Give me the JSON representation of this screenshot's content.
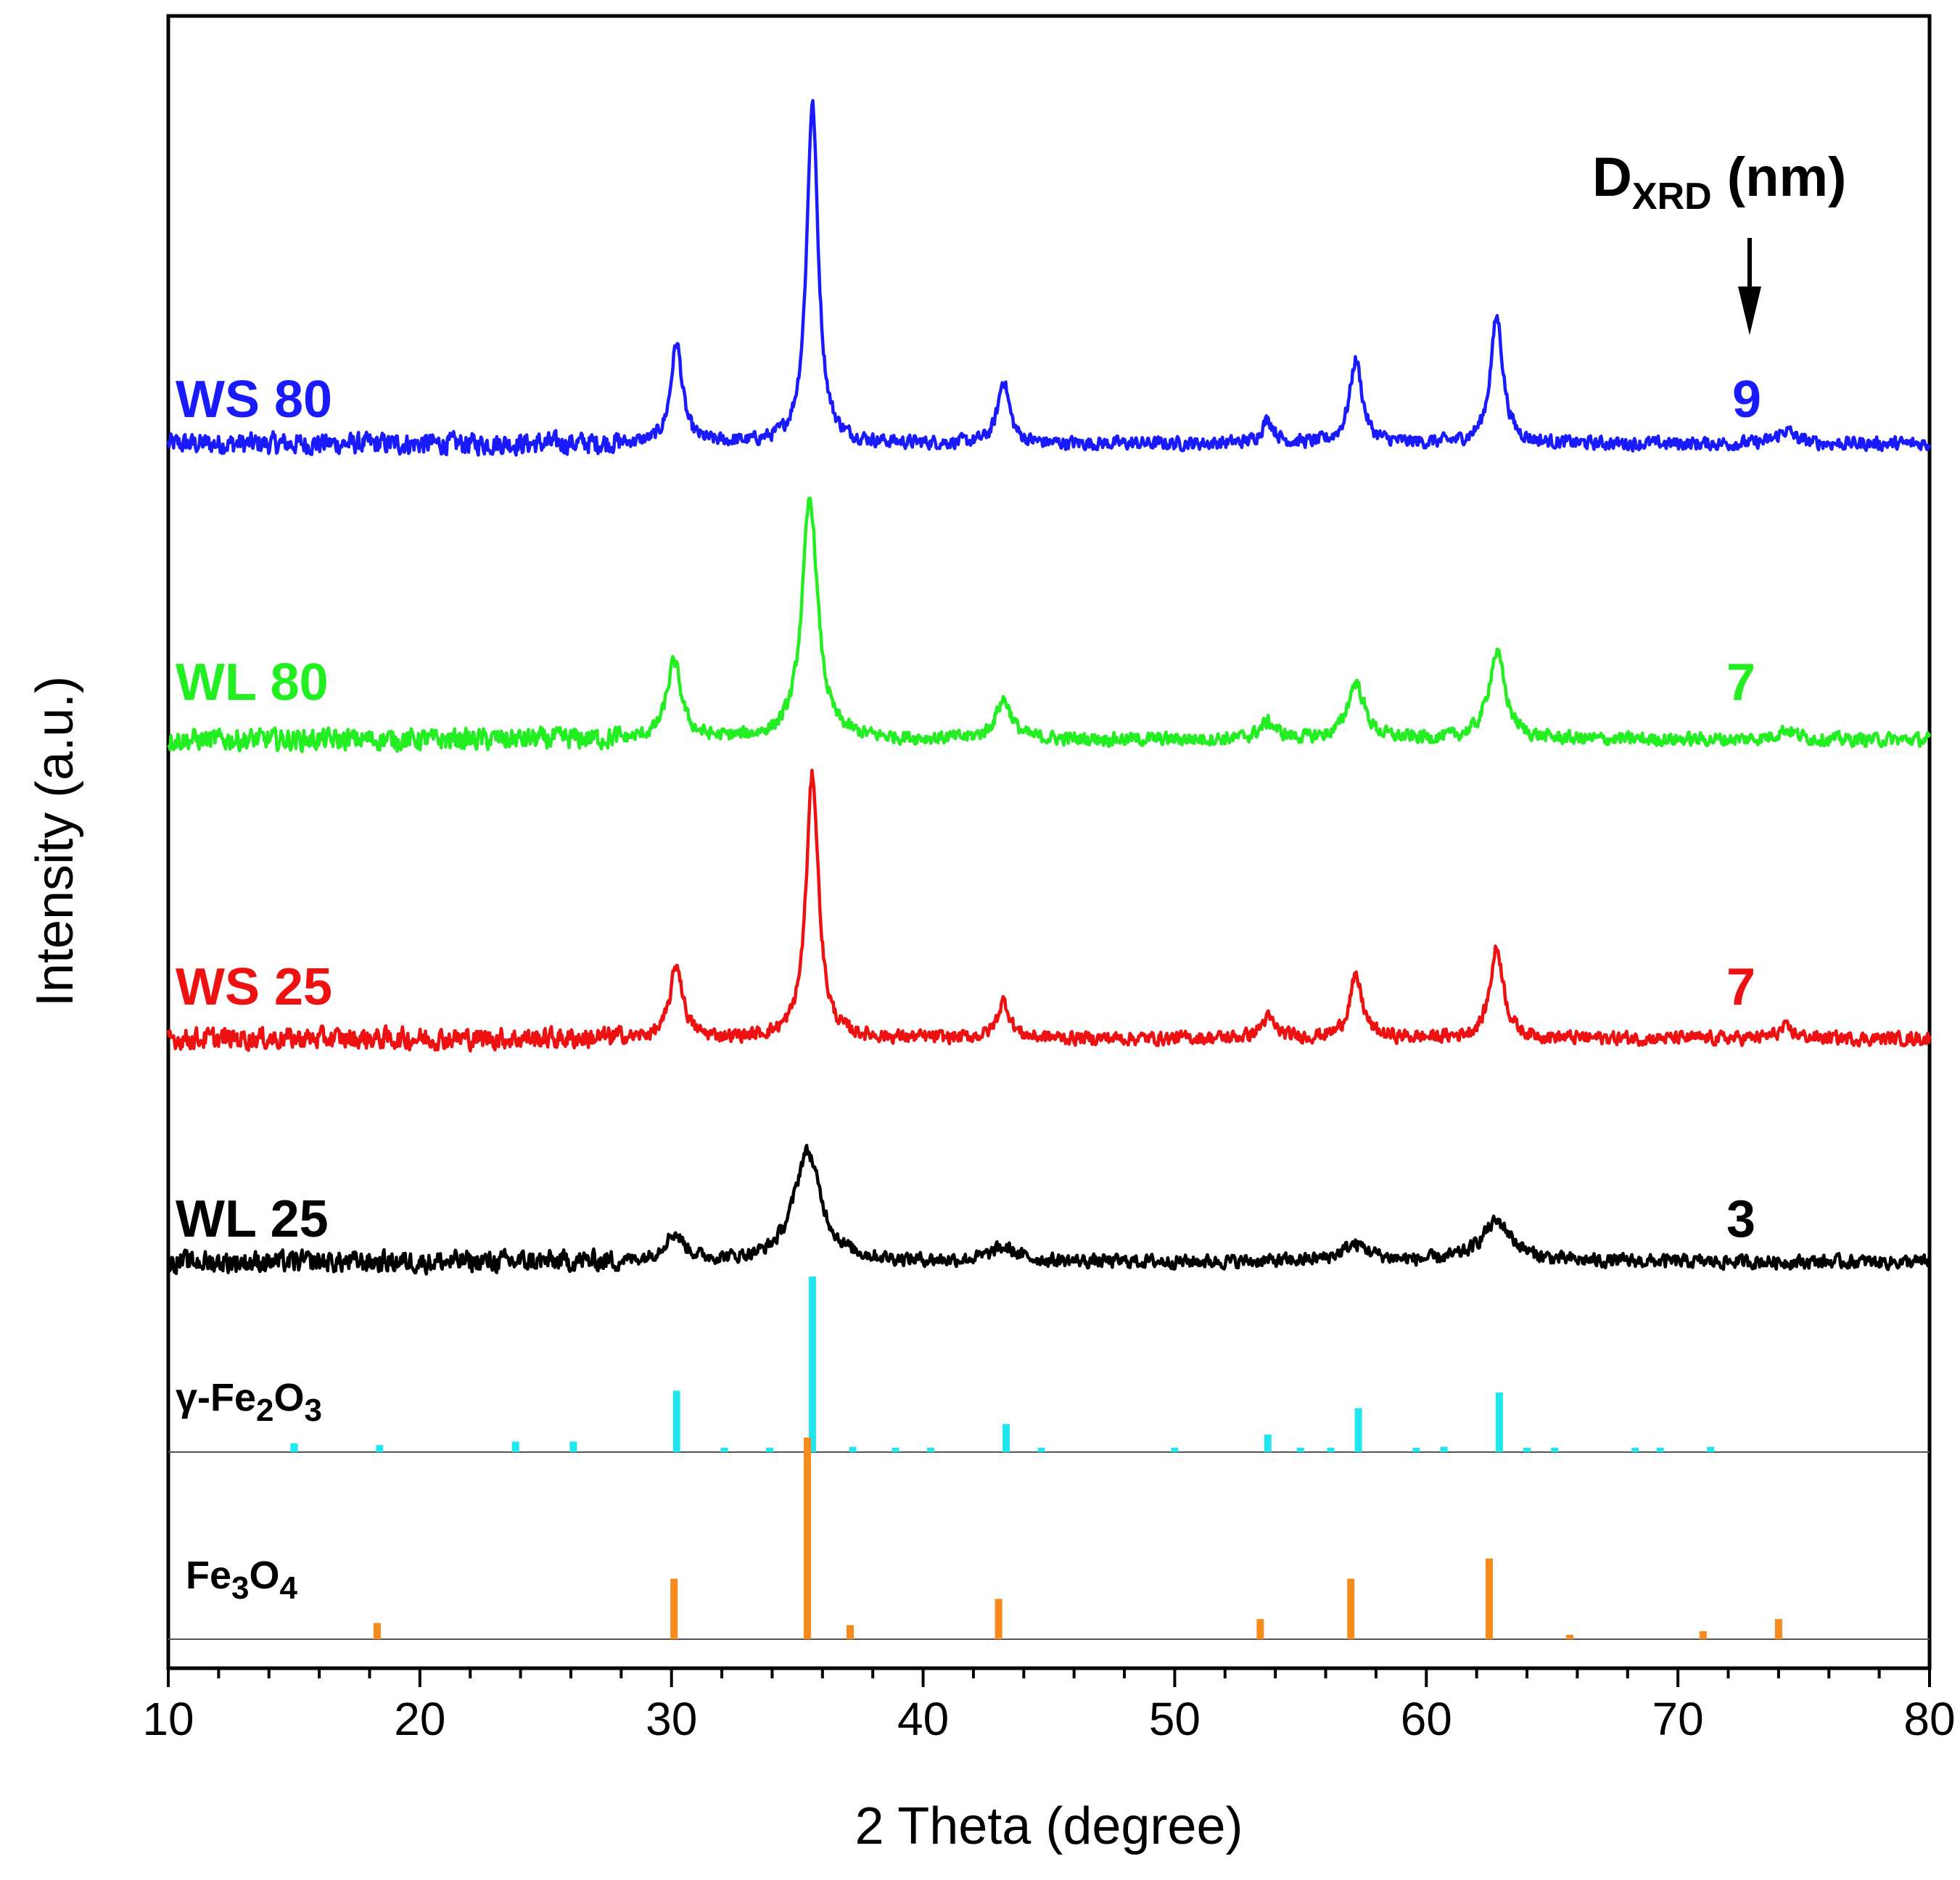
{
  "chart_data": {
    "type": "line",
    "title": "",
    "xlabel": "2 Theta (degree)",
    "ylabel": "Intensity (a.u.)",
    "xlim": [
      10,
      80
    ],
    "x_ticks": [
      "10",
      "20",
      "30",
      "40",
      "50",
      "60",
      "70",
      "80"
    ],
    "grid": false,
    "size_header": {
      "main": "D",
      "sub": "XRD",
      "rest": " (nm)"
    },
    "series": [
      {
        "name": "WS 80",
        "size": "9",
        "color": "#1a1aff",
        "noise": 0.35,
        "peaks": [
          {
            "x": 30.2,
            "h": 3.0,
            "w": 0.55
          },
          {
            "x": 35.6,
            "h": 10.2,
            "w": 0.55
          },
          {
            "x": 43.2,
            "h": 1.9,
            "w": 0.55
          },
          {
            "x": 53.7,
            "h": 0.7,
            "w": 0.6
          },
          {
            "x": 57.2,
            "h": 2.5,
            "w": 0.6
          },
          {
            "x": 62.8,
            "h": 3.8,
            "w": 0.6
          },
          {
            "x": 74.3,
            "h": 0.4,
            "w": 0.8
          }
        ]
      },
      {
        "name": "WL 80",
        "size": "7",
        "color": "#22ee22",
        "noise": 0.35,
        "peaks": [
          {
            "x": 30.1,
            "h": 2.3,
            "w": 0.7
          },
          {
            "x": 35.5,
            "h": 7.2,
            "w": 0.75
          },
          {
            "x": 43.2,
            "h": 1.2,
            "w": 0.75
          },
          {
            "x": 53.7,
            "h": 0.5,
            "w": 0.8
          },
          {
            "x": 57.2,
            "h": 1.7,
            "w": 0.8
          },
          {
            "x": 62.8,
            "h": 2.6,
            "w": 0.8
          },
          {
            "x": 74.3,
            "h": 0.3,
            "w": 0.9
          }
        ]
      },
      {
        "name": "WS 25",
        "size": "7",
        "color": "#ee1111",
        "noise": 0.35,
        "peaks": [
          {
            "x": 30.2,
            "h": 2.2,
            "w": 0.6
          },
          {
            "x": 35.6,
            "h": 7.9,
            "w": 0.6
          },
          {
            "x": 43.2,
            "h": 1.1,
            "w": 0.6
          },
          {
            "x": 53.7,
            "h": 0.6,
            "w": 0.7
          },
          {
            "x": 57.2,
            "h": 1.8,
            "w": 0.65
          },
          {
            "x": 62.8,
            "h": 2.7,
            "w": 0.65
          },
          {
            "x": 74.3,
            "h": 0.3,
            "w": 0.8
          }
        ]
      },
      {
        "name": "WL 25",
        "size": "3",
        "color": "#000000",
        "noise": 0.35,
        "peaks": [
          {
            "x": 30.1,
            "h": 0.8,
            "w": 1.0
          },
          {
            "x": 35.4,
            "h": 3.3,
            "w": 1.3
          },
          {
            "x": 43.2,
            "h": 0.4,
            "w": 1.3
          },
          {
            "x": 57.2,
            "h": 0.5,
            "w": 1.4
          },
          {
            "x": 62.8,
            "h": 1.2,
            "w": 1.5
          }
        ]
      }
    ],
    "references": [
      {
        "name": "γ-Fe2O3",
        "formula": {
          "prefix": "γ-Fe",
          "sub1": "2",
          "mid": "O",
          "sub2": "3"
        },
        "color": "#22e6ee",
        "lines": [
          {
            "x": 15.0,
            "i": 5
          },
          {
            "x": 18.4,
            "i": 4
          },
          {
            "x": 23.8,
            "i": 6
          },
          {
            "x": 26.1,
            "i": 6
          },
          {
            "x": 30.2,
            "i": 35
          },
          {
            "x": 32.1,
            "i": 2
          },
          {
            "x": 33.9,
            "i": 2
          },
          {
            "x": 35.6,
            "i": 100
          },
          {
            "x": 37.2,
            "i": 3
          },
          {
            "x": 38.9,
            "i": 2
          },
          {
            "x": 40.3,
            "i": 2
          },
          {
            "x": 43.3,
            "i": 16
          },
          {
            "x": 44.7,
            "i": 2
          },
          {
            "x": 50.0,
            "i": 2
          },
          {
            "x": 53.7,
            "i": 10
          },
          {
            "x": 55.0,
            "i": 2
          },
          {
            "x": 56.2,
            "i": 2
          },
          {
            "x": 57.3,
            "i": 25
          },
          {
            "x": 59.6,
            "i": 2
          },
          {
            "x": 60.7,
            "i": 3
          },
          {
            "x": 62.9,
            "i": 34
          },
          {
            "x": 64.0,
            "i": 2
          },
          {
            "x": 65.1,
            "i": 2
          },
          {
            "x": 68.3,
            "i": 2
          },
          {
            "x": 69.3,
            "i": 2
          },
          {
            "x": 71.3,
            "i": 3
          }
        ]
      },
      {
        "name": "Fe3O4",
        "formula": {
          "prefix": "Fe",
          "sub1": "3",
          "mid": "O",
          "sub2": "4"
        },
        "color": "#f58a1f",
        "lines": [
          {
            "x": 18.3,
            "i": 8
          },
          {
            "x": 30.1,
            "i": 30
          },
          {
            "x": 35.4,
            "i": 100
          },
          {
            "x": 37.1,
            "i": 7
          },
          {
            "x": 43.0,
            "i": 20
          },
          {
            "x": 53.4,
            "i": 10
          },
          {
            "x": 57.0,
            "i": 30
          },
          {
            "x": 62.5,
            "i": 40
          },
          {
            "x": 65.7,
            "i": 2
          },
          {
            "x": 71.0,
            "i": 4
          },
          {
            "x": 74.0,
            "i": 10
          }
        ]
      }
    ]
  }
}
